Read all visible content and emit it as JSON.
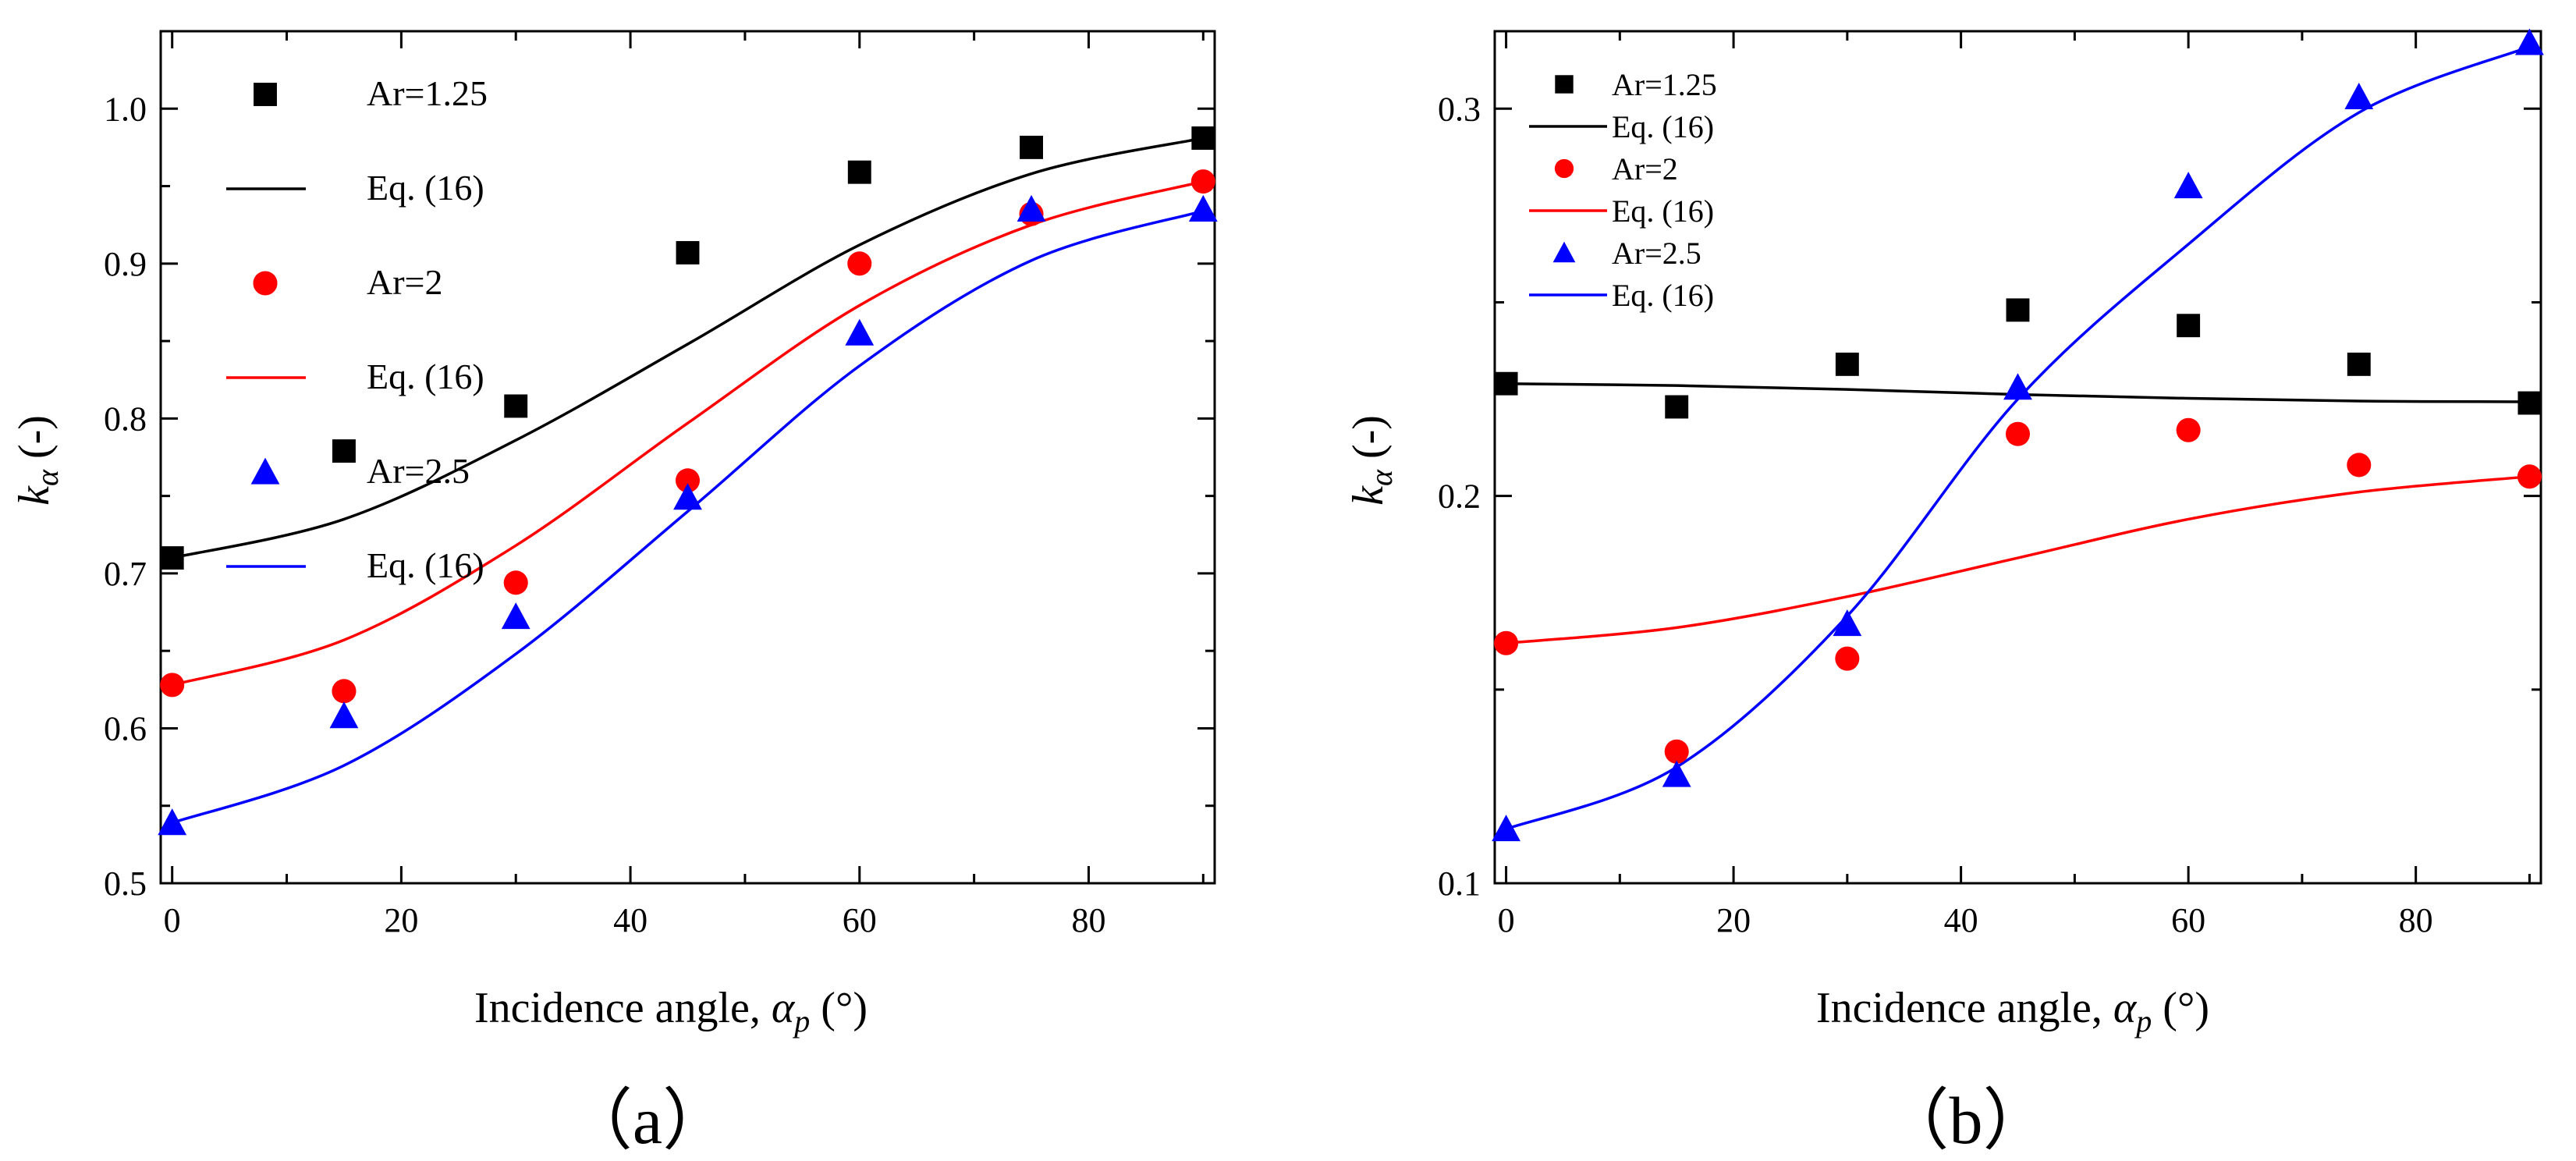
{
  "chart_data": [
    {
      "type": "scatter",
      "panel_label": "（a）",
      "xlabel": "Incidence angle, ",
      "xlabel_symbol": "α",
      "xlabel_sub": "p",
      "xlabel_unit": " (°)",
      "ylabel": "k",
      "ylabel_sub": "α",
      "ylabel_suffix": " (-)",
      "xlim": [
        -1,
        91
      ],
      "ylim": [
        0.5,
        1.05
      ],
      "xticks": [
        0,
        20,
        40,
        60,
        80
      ],
      "xtick_labels": [
        "0",
        "20",
        "40",
        "60",
        "80"
      ],
      "yticks": [
        0.5,
        0.6,
        0.7,
        0.8,
        0.9,
        1.0
      ],
      "ytick_labels": [
        "0.5",
        "0.6",
        "0.7",
        "0.8",
        "0.9",
        "1.0"
      ],
      "legend_position": "top-left",
      "series": [
        {
          "name": "Ar=1.25",
          "kind": "points",
          "marker": "square",
          "color": "#000000",
          "x": [
            0,
            15,
            30,
            45,
            60,
            75,
            90
          ],
          "values": [
            0.71,
            0.779,
            0.808,
            0.907,
            0.959,
            0.975,
            0.981
          ]
        },
        {
          "name": "Eq. (16)",
          "kind": "line",
          "color": "#000000",
          "x": [
            0,
            15,
            30,
            45,
            60,
            75,
            90
          ],
          "values": [
            0.71,
            0.735,
            0.786,
            0.848,
            0.912,
            0.958,
            0.981
          ]
        },
        {
          "name": "Ar=2",
          "kind": "points",
          "marker": "circle",
          "color": "#ff0000",
          "x": [
            0,
            15,
            30,
            45,
            60,
            75,
            90
          ],
          "values": [
            0.628,
            0.624,
            0.694,
            0.76,
            0.9,
            0.932,
            0.953
          ]
        },
        {
          "name": "Eq. (16)",
          "kind": "line",
          "color": "#ff0000",
          "x": [
            0,
            15,
            30,
            45,
            60,
            75,
            90
          ],
          "values": [
            0.628,
            0.657,
            0.718,
            0.797,
            0.873,
            0.925,
            0.953
          ]
        },
        {
          "name": "Ar=2.5",
          "kind": "points",
          "marker": "triangle",
          "color": "#0000ff",
          "x": [
            0,
            15,
            30,
            45,
            60,
            75,
            90
          ],
          "values": [
            0.539,
            0.608,
            0.672,
            0.749,
            0.855,
            0.935,
            0.935
          ]
        },
        {
          "name": "Eq. (16)",
          "kind": "line",
          "color": "#0000ff",
          "x": [
            0,
            15,
            30,
            45,
            60,
            75,
            90
          ],
          "values": [
            0.539,
            0.576,
            0.648,
            0.74,
            0.834,
            0.902,
            0.934
          ]
        }
      ]
    },
    {
      "type": "scatter",
      "panel_label": "（b）",
      "xlabel": "Incidence angle, ",
      "xlabel_symbol": "α",
      "xlabel_sub": "p",
      "xlabel_unit": " (°)",
      "ylabel": "k",
      "ylabel_sub": "α",
      "ylabel_suffix": " (-)",
      "xlim": [
        -1,
        91
      ],
      "ylim": [
        0.1,
        0.32
      ],
      "xticks": [
        0,
        20,
        40,
        60,
        80
      ],
      "xtick_labels": [
        "0",
        "20",
        "40",
        "60",
        "80"
      ],
      "yticks": [
        0.1,
        0.2,
        0.3
      ],
      "ytick_labels": [
        "0.1",
        "0.2",
        "0.3"
      ],
      "legend_position": "top-left",
      "series": [
        {
          "name": "Ar=1.25",
          "kind": "points",
          "marker": "square",
          "color": "#000000",
          "x": [
            0,
            15,
            30,
            45,
            60,
            75,
            90
          ],
          "values": [
            0.229,
            0.223,
            0.234,
            0.248,
            0.244,
            0.234,
            0.224
          ]
        },
        {
          "name": "Eq. (16)",
          "kind": "line",
          "color": "#000000",
          "x": [
            0,
            15,
            30,
            45,
            60,
            75,
            90
          ],
          "values": [
            0.229,
            0.2285,
            0.2275,
            0.2262,
            0.2252,
            0.2245,
            0.2243
          ]
        },
        {
          "name": "Ar=2",
          "kind": "points",
          "marker": "circle",
          "color": "#ff0000",
          "x": [
            0,
            15,
            30,
            45,
            60,
            75,
            90
          ],
          "values": [
            0.162,
            0.134,
            0.158,
            0.216,
            0.217,
            0.208,
            0.205
          ]
        },
        {
          "name": "Eq. (16)",
          "kind": "line",
          "color": "#ff0000",
          "x": [
            0,
            15,
            30,
            45,
            60,
            75,
            90
          ],
          "values": [
            0.162,
            0.166,
            0.174,
            0.184,
            0.194,
            0.201,
            0.205
          ]
        },
        {
          "name": "Ar=2.5",
          "kind": "points",
          "marker": "triangle",
          "color": "#0000ff",
          "x": [
            0,
            15,
            30,
            45,
            60,
            75,
            90
          ],
          "values": [
            0.114,
            0.128,
            0.167,
            0.228,
            0.28,
            0.303,
            0.317
          ]
        },
        {
          "name": "Eq. (16)",
          "kind": "line",
          "color": "#0000ff",
          "x": [
            0,
            15,
            30,
            45,
            60,
            75,
            90
          ],
          "values": [
            0.114,
            0.13,
            0.169,
            0.225,
            0.265,
            0.299,
            0.316
          ]
        }
      ]
    }
  ]
}
